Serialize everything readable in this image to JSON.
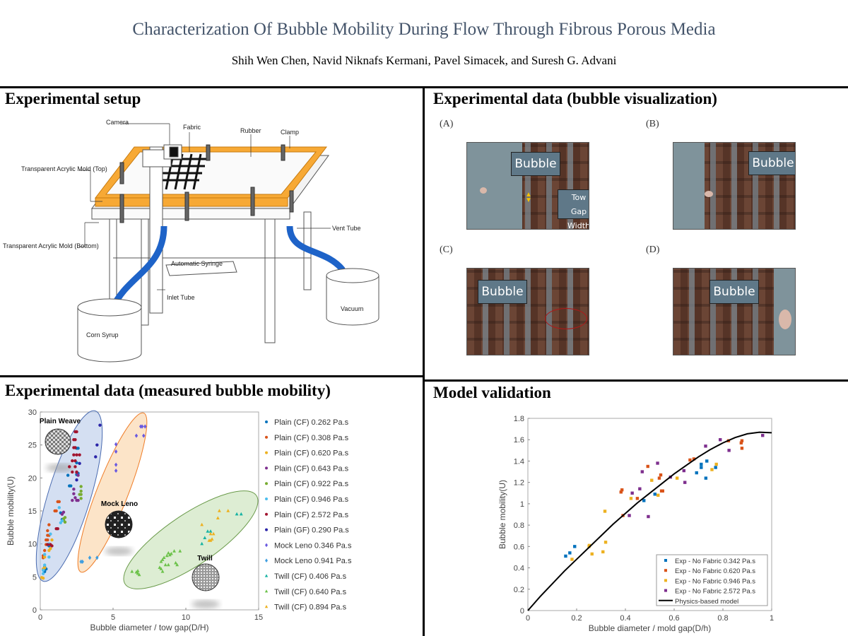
{
  "header": {
    "title": "Characterization Of  Bubble Mobility During Flow Through Fibrous Porous Media",
    "authors": "Shih Wen Chen, Navid Niknafs Kermani, Pavel Simacek, and Suresh G. Advani"
  },
  "setup": {
    "heading": "Experimental setup",
    "labels": {
      "camera": "Camera",
      "fabric": "Fabric",
      "rubber": "Rubber",
      "clamp": "Clamp",
      "mold_top": "Transparent Acrylic Mold (Top)",
      "mold_bottom": "Transparent Acrylic Mold (Bottom)",
      "vent_tube": "Vent Tube",
      "syringe": "Automatic Syringe",
      "inlet_tube": "Inlet Tube",
      "corn_syrup": "Corn Syrup",
      "vacuum": "Vacuum"
    }
  },
  "visualization": {
    "heading": "Experimental data (bubble visualization)",
    "panels": [
      {
        "label": "(A)",
        "tag": "Bubble",
        "tag2": "Tow Gap Width"
      },
      {
        "label": "(B)",
        "tag": "Bubble"
      },
      {
        "label": "(C)",
        "tag": "Bubble"
      },
      {
        "label": "(D)",
        "tag": "Bubble"
      }
    ]
  },
  "mobility_heading": "Experimental data (measured bubble mobility)",
  "validation_heading": "Model validation",
  "chart_data": [
    {
      "type": "scatter",
      "title": "",
      "xlabel": "Bubble diameter / tow gap(D/H)",
      "ylabel": "Bubble mobility(U)",
      "xlim": [
        0,
        15
      ],
      "ylim": [
        0,
        30
      ],
      "xticks": [
        0,
        5,
        10,
        15
      ],
      "yticks": [
        0,
        5,
        10,
        15,
        20,
        25,
        30
      ],
      "legend": "right",
      "annotations": [
        "Plain Weave",
        "Mock Leno",
        "Twill"
      ],
      "series": [
        {
          "name": "Plain (CF) 0.262 Pa.s",
          "color": "#0072BD",
          "marker": "circle",
          "points": [
            [
              2,
              18.8
            ],
            [
              2.1,
              18.8
            ],
            [
              1.9,
              20.4
            ],
            [
              2.5,
              24.5
            ],
            [
              2.6,
              24.5
            ],
            [
              2.5,
              22.3
            ],
            [
              2.6,
              20.7
            ],
            [
              2.5,
              20.5
            ],
            [
              0.3,
              6.5
            ],
            [
              0.4,
              6.2
            ],
            [
              0.3,
              5.8
            ],
            [
              0.6,
              9.7
            ],
            [
              1.5,
              13.7
            ],
            [
              1.4,
              14.7
            ]
          ]
        },
        {
          "name": "Plain (CF) 0.308 Pa.s",
          "color": "#D95319",
          "marker": "circle",
          "points": [
            [
              1.2,
              16.4
            ],
            [
              1.3,
              16.4
            ],
            [
              1.0,
              15
            ],
            [
              1.1,
              15
            ],
            [
              0.6,
              12.9
            ],
            [
              0.5,
              12
            ],
            [
              0.5,
              11.3
            ],
            [
              0.6,
              11.3
            ],
            [
              0.4,
              10.6
            ],
            [
              0.5,
              10.6
            ],
            [
              0.3,
              9
            ],
            [
              0.2,
              8.2
            ],
            [
              0.2,
              7.9
            ],
            [
              0.4,
              9.9
            ]
          ]
        },
        {
          "name": "Plain (CF) 0.620 Pa.s",
          "color": "#EDB120",
          "marker": "circle",
          "points": [
            [
              0.1,
              4.9
            ],
            [
              0.2,
              4.8
            ],
            [
              0.2,
              6.2
            ],
            [
              0.3,
              6.4
            ],
            [
              0.8,
              10.6
            ],
            [
              0.7,
              9.3
            ],
            [
              0.6,
              9
            ],
            [
              0.3,
              8
            ]
          ]
        },
        {
          "name": "Plain (CF) 0.643 Pa.s",
          "color": "#7E2F8E",
          "marker": "circle",
          "points": [
            [
              2.3,
              18.3
            ],
            [
              2.3,
              17.6
            ],
            [
              2.2,
              16.6
            ],
            [
              2.4,
              17
            ],
            [
              2.5,
              16.6
            ],
            [
              2.6,
              16.6
            ],
            [
              1.6,
              14.8
            ],
            [
              1.5,
              14.5
            ],
            [
              2.5,
              20.8
            ],
            [
              2.6,
              20.4
            ]
          ]
        },
        {
          "name": "Plain (CF) 0.922 Pa.s",
          "color": "#77AC30",
          "marker": "circle",
          "points": [
            [
              2.8,
              18.7
            ],
            [
              2.8,
              18
            ],
            [
              2.8,
              17.5
            ],
            [
              2.7,
              17.5
            ],
            [
              2.8,
              16.9
            ],
            [
              1.7,
              14
            ],
            [
              1.6,
              13.6
            ],
            [
              1.7,
              13.3
            ],
            [
              1.6,
              13.8
            ]
          ]
        },
        {
          "name": "Plain (CF) 0.946 Pa.s",
          "color": "#4DBEEE",
          "marker": "circle",
          "points": [
            [
              1.3,
              15.5
            ],
            [
              1.4,
              13.2
            ],
            [
              1.5,
              13.5
            ],
            [
              0.7,
              11.5
            ],
            [
              0.6,
              10
            ],
            [
              0.6,
              8
            ],
            [
              0.3,
              8.4
            ],
            [
              0.3,
              6.8
            ],
            [
              0.2,
              5.5
            ],
            [
              0.2,
              6
            ]
          ]
        },
        {
          "name": "Plain (CF) 2.572 Pa.s",
          "color": "#A2142F",
          "marker": "circle",
          "points": [
            [
              2.4,
              27
            ],
            [
              2.5,
              27
            ],
            [
              2.3,
              25.8
            ],
            [
              2.4,
              25.8
            ],
            [
              2.3,
              24.6
            ],
            [
              2.4,
              24.6
            ],
            [
              2.3,
              23.5
            ],
            [
              2.5,
              23.5
            ],
            [
              2.7,
              23.5
            ],
            [
              2.2,
              22.6
            ],
            [
              2.4,
              22.6
            ],
            [
              2,
              21.7
            ],
            [
              2.4,
              21.7
            ],
            [
              2.2,
              20.9
            ],
            [
              2.5,
              20.9
            ],
            [
              1.1,
              12.3
            ],
            [
              1.2,
              12.3
            ],
            [
              0.7,
              9.9
            ],
            [
              0.8,
              9.7
            ],
            [
              0.5,
              9.9
            ]
          ]
        },
        {
          "name": "Plain (GF) 0.290 Pa.s",
          "color": "#2a24a8",
          "marker": "circle",
          "points": [
            [
              4.1,
              28
            ],
            [
              3.9,
              25
            ],
            [
              3.8,
              23.2
            ],
            [
              2.7,
              22.2
            ],
            [
              2.5,
              19.7
            ]
          ]
        },
        {
          "name": "Mock Leno 0.346 Pa.s",
          "color": "#6a5ae0",
          "marker": "diamond",
          "points": [
            [
              6.9,
              27.8
            ],
            [
              7,
              27.8
            ],
            [
              7.2,
              27.8
            ],
            [
              6.6,
              26.4
            ],
            [
              7.1,
              26.4
            ],
            [
              5.2,
              25.1
            ],
            [
              5.2,
              24
            ],
            [
              5.2,
              22
            ],
            [
              5.2,
              21.1
            ]
          ]
        },
        {
          "name": "Mock Leno 0.941 Pa.s",
          "color": "#3f9ee0",
          "marker": "diamond",
          "points": [
            [
              2.8,
              7.3
            ],
            [
              2.9,
              7.3
            ],
            [
              3.4,
              7.9
            ],
            [
              3.9,
              7.9
            ]
          ]
        },
        {
          "name": "Twill (CF) 0.406 Pa.s",
          "color": "#17b3a3",
          "marker": "triangle",
          "points": [
            [
              11.5,
              11.9
            ],
            [
              11.7,
              11.9
            ],
            [
              11.3,
              10.9
            ],
            [
              11.1,
              10
            ],
            [
              13.5,
              14.5
            ],
            [
              13.8,
              14.5
            ]
          ]
        },
        {
          "name": "Twill (CF) 0.640 Pa.s",
          "color": "#6cc24a",
          "marker": "triangle",
          "points": [
            [
              6.3,
              5.8
            ],
            [
              6.6,
              5.7
            ],
            [
              6.7,
              5.5
            ],
            [
              6.8,
              5.3
            ],
            [
              6.7,
              5.9
            ],
            [
              8.2,
              6.4
            ],
            [
              8.3,
              6.2
            ],
            [
              8.4,
              5.8
            ],
            [
              8.6,
              6.8
            ],
            [
              8.8,
              6.8
            ],
            [
              8.3,
              7.3
            ],
            [
              8.4,
              7.6
            ],
            [
              8.5,
              7.9
            ],
            [
              8.7,
              8.2
            ],
            [
              8.9,
              8.3
            ],
            [
              8.8,
              8.6
            ],
            [
              9,
              8.5
            ],
            [
              9.2,
              8.9
            ],
            [
              9.6,
              8.9
            ],
            [
              9.3,
              7.1
            ],
            [
              9.4,
              6.8
            ]
          ]
        },
        {
          "name": "Twill (CF) 0.894 Pa.s",
          "color": "#EDB120",
          "marker": "triangle",
          "points": [
            [
              11.1,
              12.9
            ],
            [
              12.3,
              15
            ],
            [
              12.9,
              15
            ],
            [
              12.2,
              13.9
            ],
            [
              11.7,
              11.5
            ],
            [
              11.9,
              11.5
            ],
            [
              11.8,
              10.7
            ],
            [
              11.7,
              10.5
            ],
            [
              11.6,
              10.5
            ]
          ]
        }
      ]
    },
    {
      "type": "scatter",
      "title": "",
      "xlabel": "Bubble diameter / mold gap(D/h)",
      "ylabel": "Bubble mobility(U)",
      "xlim": [
        0,
        1
      ],
      "ylim": [
        0,
        1.8
      ],
      "xticks": [
        0,
        0.2,
        0.4,
        0.6,
        0.8,
        1
      ],
      "yticks": [
        0,
        0.2,
        0.4,
        0.6,
        0.8,
        1,
        1.2,
        1.4,
        1.6,
        1.8
      ],
      "legend": "bottom-right",
      "series": [
        {
          "name": "Exp - No Fabric 0.342 Pa.s",
          "color": "#0072BD",
          "marker": "square",
          "points": [
            [
              0.155,
              0.51
            ],
            [
              0.172,
              0.54
            ],
            [
              0.192,
              0.6
            ],
            [
              0.476,
              1.03
            ],
            [
              0.521,
              1.09
            ],
            [
              0.692,
              1.29
            ],
            [
              0.711,
              1.34
            ],
            [
              0.711,
              1.37
            ],
            [
              0.734,
              1.4
            ],
            [
              0.77,
              1.34
            ],
            [
              0.73,
              1.24
            ]
          ]
        },
        {
          "name": "Exp - No Fabric 0.620 Pa.s",
          "color": "#D95319",
          "marker": "square",
          "points": [
            [
              0.382,
              1.11
            ],
            [
              0.386,
              1.13
            ],
            [
              0.39,
              0.89
            ],
            [
              0.449,
              1.05
            ],
            [
              0.492,
              1.35
            ],
            [
              0.539,
              1.24
            ],
            [
              0.545,
              1.27
            ],
            [
              0.548,
              1.12
            ],
            [
              0.553,
              1.12
            ],
            [
              0.665,
              1.41
            ],
            [
              0.681,
              1.42
            ],
            [
              0.823,
              1.59
            ],
            [
              0.875,
              1.57
            ],
            [
              0.878,
              1.52
            ],
            [
              0.878,
              1.59
            ]
          ]
        },
        {
          "name": "Exp - No Fabric 0.946 Pa.s",
          "color": "#EDB120",
          "marker": "square",
          "points": [
            [
              0.181,
              0.48
            ],
            [
              0.251,
              0.6
            ],
            [
              0.252,
              0.61
            ],
            [
              0.263,
              0.53
            ],
            [
              0.308,
              0.55
            ],
            [
              0.316,
              0.93
            ],
            [
              0.319,
              0.64
            ],
            [
              0.423,
              1.05
            ],
            [
              0.508,
              1.22
            ],
            [
              0.534,
              1.08
            ],
            [
              0.612,
              1.24
            ],
            [
              0.755,
              1.32
            ],
            [
              0.773,
              1.37
            ]
          ]
        },
        {
          "name": "Exp - No Fabric 2.572 Pa.s",
          "color": "#7E2F8E",
          "marker": "square",
          "points": [
            [
              0.416,
              0.89
            ],
            [
              0.428,
              1.1
            ],
            [
              0.459,
              1.14
            ],
            [
              0.469,
              1.3
            ],
            [
              0.494,
              0.88
            ],
            [
              0.532,
              1.38
            ],
            [
              0.585,
              1.25
            ],
            [
              0.64,
              1.31
            ],
            [
              0.644,
              1.2
            ],
            [
              0.729,
              1.54
            ],
            [
              0.789,
              1.6
            ],
            [
              0.825,
              1.5
            ],
            [
              0.963,
              1.64
            ]
          ]
        },
        {
          "name": "Physics-based model",
          "color": "#000000",
          "marker": "line",
          "points": [
            [
              0,
              0
            ],
            [
              0.05,
              0.13
            ],
            [
              0.1,
              0.25
            ],
            [
              0.15,
              0.37
            ],
            [
              0.2,
              0.48
            ],
            [
              0.25,
              0.59
            ],
            [
              0.3,
              0.7
            ],
            [
              0.35,
              0.81
            ],
            [
              0.4,
              0.91
            ],
            [
              0.45,
              1.01
            ],
            [
              0.5,
              1.1
            ],
            [
              0.55,
              1.19
            ],
            [
              0.6,
              1.28
            ],
            [
              0.65,
              1.36
            ],
            [
              0.7,
              1.44
            ],
            [
              0.75,
              1.51
            ],
            [
              0.8,
              1.57
            ],
            [
              0.85,
              1.62
            ],
            [
              0.9,
              1.655
            ],
            [
              0.95,
              1.67
            ],
            [
              1.0,
              1.665
            ]
          ]
        }
      ]
    }
  ]
}
